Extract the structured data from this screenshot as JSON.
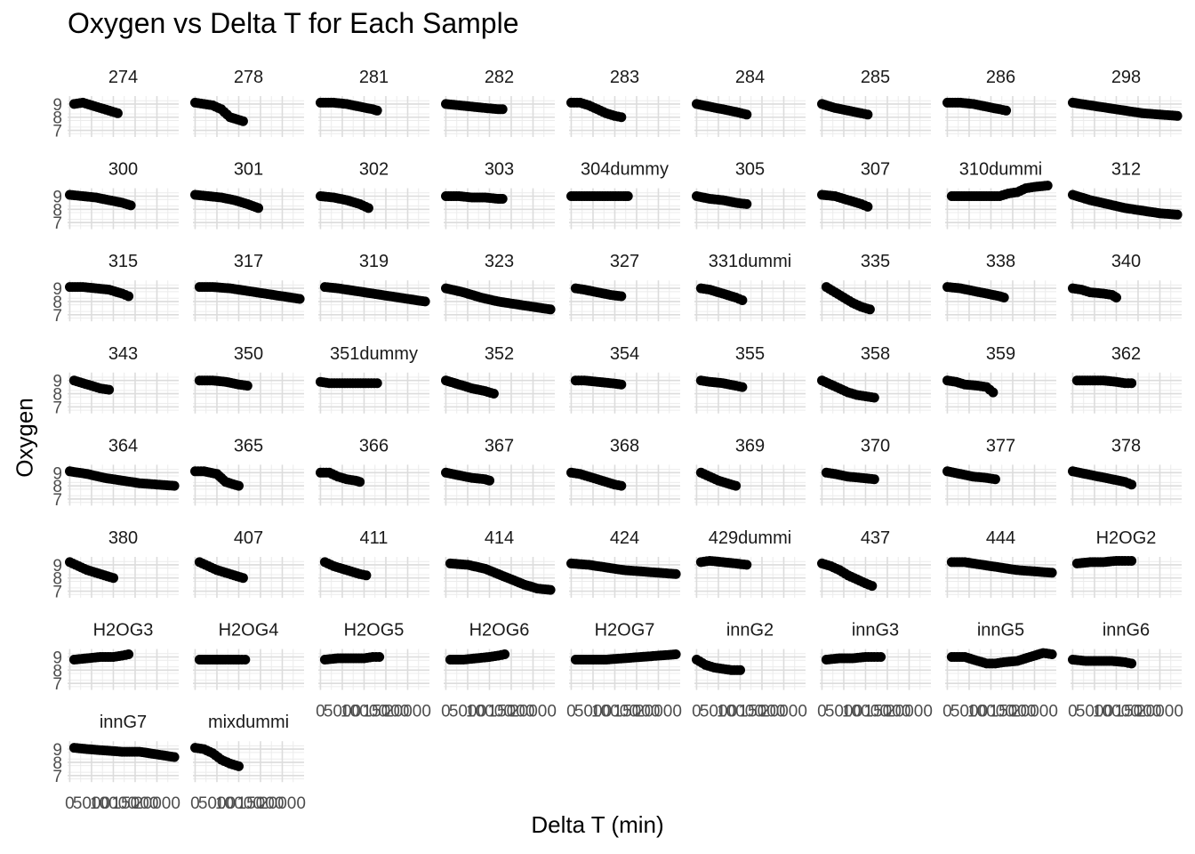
{
  "chart_data": {
    "type": "scatter",
    "title": "Oxygen vs Delta T for Each Sample",
    "xlabel": "Delta T (min)",
    "ylabel": "Oxygen",
    "layout": "facet-wrap",
    "facet_columns": 9,
    "xlim": [
      -500,
      25000
    ],
    "ylim": [
      6.5,
      9.6
    ],
    "y_ticks": [
      7,
      8,
      9
    ],
    "x_ticks": [
      0,
      5000,
      10000,
      15000,
      20000
    ],
    "x_tick_labels": [
      "0",
      "5000",
      "10000",
      "15000",
      "20000"
    ],
    "grid": true,
    "point_color": "#000000",
    "facets": [
      {
        "label": "274",
        "x": [
          1000,
          3000,
          5000,
          7000,
          9000,
          11000
        ],
        "y": [
          9.0,
          9.1,
          8.9,
          8.7,
          8.5,
          8.3
        ]
      },
      {
        "label": "278",
        "x": [
          0,
          2000,
          4000,
          6000,
          8000,
          9000,
          11000
        ],
        "y": [
          9.1,
          9.0,
          8.9,
          8.6,
          8.0,
          7.9,
          7.7
        ]
      },
      {
        "label": "281",
        "x": [
          0,
          3000,
          6000,
          9000,
          12000,
          13000
        ],
        "y": [
          9.1,
          9.1,
          9.0,
          8.8,
          8.6,
          8.5
        ]
      },
      {
        "label": "282",
        "x": [
          0,
          3000,
          6000,
          9000,
          12000,
          13000
        ],
        "y": [
          9.0,
          8.9,
          8.8,
          8.7,
          8.6,
          8.6
        ]
      },
      {
        "label": "283",
        "x": [
          0,
          2000,
          4000,
          6000,
          8000,
          10000,
          11500
        ],
        "y": [
          9.1,
          9.1,
          8.9,
          8.6,
          8.3,
          8.1,
          8.0
        ]
      },
      {
        "label": "284",
        "x": [
          0,
          3000,
          6000,
          9000,
          11500
        ],
        "y": [
          9.0,
          8.8,
          8.6,
          8.4,
          8.2
        ]
      },
      {
        "label": "285",
        "x": [
          0,
          3000,
          6000,
          9000,
          10500
        ],
        "y": [
          9.0,
          8.7,
          8.5,
          8.3,
          8.2
        ]
      },
      {
        "label": "286",
        "x": [
          0,
          3000,
          6000,
          9000,
          12000,
          13500
        ],
        "y": [
          9.1,
          9.1,
          9.0,
          8.8,
          8.6,
          8.5
        ]
      },
      {
        "label": "298",
        "x": [
          0,
          4000,
          8000,
          12000,
          16000,
          20000,
          24000
        ],
        "y": [
          9.1,
          8.9,
          8.7,
          8.5,
          8.3,
          8.2,
          8.1
        ]
      },
      {
        "label": "300",
        "x": [
          0,
          3000,
          6000,
          9000,
          12000,
          14000
        ],
        "y": [
          9.1,
          9.0,
          8.9,
          8.7,
          8.5,
          8.3
        ]
      },
      {
        "label": "301",
        "x": [
          0,
          3000,
          6000,
          9000,
          12000,
          14500
        ],
        "y": [
          9.1,
          9.0,
          8.9,
          8.7,
          8.4,
          8.1
        ]
      },
      {
        "label": "302",
        "x": [
          0,
          3000,
          6000,
          9000,
          11000
        ],
        "y": [
          9.0,
          8.9,
          8.7,
          8.4,
          8.1
        ]
      },
      {
        "label": "303",
        "x": [
          0,
          3000,
          6000,
          9000,
          12000,
          13000
        ],
        "y": [
          9.0,
          9.0,
          8.9,
          8.9,
          8.8,
          8.8
        ]
      },
      {
        "label": "304dummy",
        "x": [
          0,
          3000,
          6000,
          9000,
          12000,
          13000
        ],
        "y": [
          9.0,
          9.0,
          9.0,
          9.0,
          9.0,
          9.0
        ]
      },
      {
        "label": "305",
        "x": [
          0,
          3000,
          6000,
          9000,
          11500
        ],
        "y": [
          9.0,
          8.8,
          8.7,
          8.5,
          8.4
        ]
      },
      {
        "label": "307",
        "x": [
          0,
          3000,
          5000,
          7000,
          9000,
          10500
        ],
        "y": [
          9.1,
          9.0,
          8.8,
          8.6,
          8.4,
          8.2
        ]
      },
      {
        "label": "310dummi",
        "x": [
          1000,
          5000,
          9000,
          12000,
          14000,
          16000,
          18000,
          20000,
          23000
        ],
        "y": [
          9.0,
          9.0,
          9.0,
          9.0,
          9.2,
          9.3,
          9.6,
          9.7,
          9.8
        ]
      },
      {
        "label": "312",
        "x": [
          0,
          4000,
          8000,
          12000,
          16000,
          20000,
          24000
        ],
        "y": [
          9.1,
          8.7,
          8.4,
          8.1,
          7.9,
          7.7,
          7.6
        ]
      },
      {
        "label": "315",
        "x": [
          0,
          3000,
          6000,
          9000,
          12000,
          13500
        ],
        "y": [
          9.1,
          9.1,
          9.0,
          8.9,
          8.6,
          8.4
        ]
      },
      {
        "label": "317",
        "x": [
          1000,
          4000,
          8000,
          12000,
          16000,
          20000,
          24000
        ],
        "y": [
          9.1,
          9.1,
          9.0,
          8.8,
          8.6,
          8.4,
          8.2
        ]
      },
      {
        "label": "319",
        "x": [
          1000,
          4000,
          8000,
          12000,
          16000,
          20000,
          24000
        ],
        "y": [
          9.1,
          9.0,
          8.8,
          8.6,
          8.4,
          8.2,
          8.0
        ]
      },
      {
        "label": "323",
        "x": [
          0,
          4000,
          8000,
          12000,
          16000,
          20000,
          24000
        ],
        "y": [
          9.0,
          8.7,
          8.3,
          8.0,
          7.8,
          7.6,
          7.4
        ]
      },
      {
        "label": "327",
        "x": [
          1000,
          3000,
          6000,
          9000,
          11500
        ],
        "y": [
          9.0,
          8.9,
          8.7,
          8.5,
          8.4
        ]
      },
      {
        "label": "331dummi",
        "x": [
          1000,
          3000,
          6000,
          9000,
          10500
        ],
        "y": [
          9.0,
          8.9,
          8.6,
          8.3,
          8.1
        ]
      },
      {
        "label": "335",
        "x": [
          1000,
          3000,
          5000,
          7000,
          9000,
          11000
        ],
        "y": [
          9.1,
          8.7,
          8.3,
          7.9,
          7.6,
          7.4
        ]
      },
      {
        "label": "338",
        "x": [
          0,
          3000,
          6000,
          9000,
          12000,
          13000
        ],
        "y": [
          9.1,
          9.0,
          8.8,
          8.6,
          8.4,
          8.3
        ]
      },
      {
        "label": "340",
        "x": [
          0,
          2000,
          4000,
          7000,
          9000,
          10000
        ],
        "y": [
          9.0,
          8.9,
          8.7,
          8.6,
          8.5,
          8.3
        ]
      },
      {
        "label": "343",
        "x": [
          1000,
          3000,
          5000,
          7000,
          9000
        ],
        "y": [
          9.0,
          8.8,
          8.6,
          8.4,
          8.3
        ]
      },
      {
        "label": "350",
        "x": [
          1000,
          4000,
          7000,
          10000,
          12000
        ],
        "y": [
          9.0,
          9.0,
          8.9,
          8.7,
          8.6
        ]
      },
      {
        "label": "351dummy",
        "x": [
          0,
          2000,
          5000,
          8000,
          11000,
          13000
        ],
        "y": [
          8.9,
          8.8,
          8.8,
          8.8,
          8.8,
          8.8
        ]
      },
      {
        "label": "352",
        "x": [
          0,
          3000,
          6000,
          9000,
          11000
        ],
        "y": [
          9.0,
          8.7,
          8.4,
          8.2,
          8.0
        ]
      },
      {
        "label": "354",
        "x": [
          1000,
          3000,
          6000,
          9000,
          11500
        ],
        "y": [
          9.0,
          9.0,
          8.9,
          8.8,
          8.7
        ]
      },
      {
        "label": "355",
        "x": [
          1000,
          3000,
          6000,
          9000,
          10500
        ],
        "y": [
          9.0,
          8.9,
          8.8,
          8.6,
          8.5
        ]
      },
      {
        "label": "358",
        "x": [
          0,
          2000,
          4000,
          6000,
          8000,
          10000,
          12000
        ],
        "y": [
          9.0,
          8.7,
          8.4,
          8.1,
          7.9,
          7.8,
          7.7
        ]
      },
      {
        "label": "359",
        "x": [
          0,
          2000,
          4000,
          7000,
          9000,
          10500
        ],
        "y": [
          9.0,
          8.9,
          8.7,
          8.6,
          8.5,
          8.1
        ]
      },
      {
        "label": "362",
        "x": [
          1000,
          4000,
          7000,
          10000,
          12000,
          13500
        ],
        "y": [
          9.0,
          9.0,
          9.0,
          8.9,
          8.8,
          8.8
        ]
      },
      {
        "label": "364",
        "x": [
          0,
          4000,
          8000,
          12000,
          16000,
          20000,
          24000
        ],
        "y": [
          9.1,
          8.9,
          8.6,
          8.4,
          8.2,
          8.1,
          8.0
        ]
      },
      {
        "label": "365",
        "x": [
          0,
          2000,
          5000,
          6000,
          7000,
          8000,
          10000
        ],
        "y": [
          9.1,
          9.1,
          8.9,
          8.6,
          8.3,
          8.2,
          8.0
        ]
      },
      {
        "label": "366",
        "x": [
          0,
          2000,
          4000,
          6000,
          8000,
          9000
        ],
        "y": [
          9.0,
          9.0,
          8.7,
          8.5,
          8.4,
          8.3
        ]
      },
      {
        "label": "367",
        "x": [
          0,
          3000,
          6000,
          9000,
          10000
        ],
        "y": [
          9.0,
          8.8,
          8.6,
          8.5,
          8.4
        ]
      },
      {
        "label": "368",
        "x": [
          0,
          2000,
          4000,
          6000,
          8000,
          10000,
          11500
        ],
        "y": [
          9.0,
          8.9,
          8.7,
          8.5,
          8.3,
          8.1,
          8.0
        ]
      },
      {
        "label": "369",
        "x": [
          1000,
          3000,
          5000,
          7000,
          9000
        ],
        "y": [
          9.0,
          8.7,
          8.4,
          8.2,
          8.0
        ]
      },
      {
        "label": "370",
        "x": [
          1000,
          3000,
          6000,
          9000,
          12000
        ],
        "y": [
          9.0,
          8.9,
          8.7,
          8.6,
          8.5
        ]
      },
      {
        "label": "377",
        "x": [
          0,
          3000,
          6000,
          9000,
          11000
        ],
        "y": [
          9.1,
          8.9,
          8.7,
          8.6,
          8.5
        ]
      },
      {
        "label": "378",
        "x": [
          0,
          3000,
          6000,
          9000,
          12000,
          13500
        ],
        "y": [
          9.1,
          8.9,
          8.7,
          8.5,
          8.3,
          8.1
        ]
      },
      {
        "label": "380",
        "x": [
          0,
          2000,
          4000,
          6000,
          8000,
          10000
        ],
        "y": [
          9.2,
          8.9,
          8.6,
          8.4,
          8.2,
          8.0
        ]
      },
      {
        "label": "407",
        "x": [
          1000,
          3000,
          5000,
          7000,
          9000,
          11000
        ],
        "y": [
          9.2,
          8.9,
          8.6,
          8.4,
          8.2,
          8.0
        ]
      },
      {
        "label": "411",
        "x": [
          1000,
          3000,
          5000,
          7000,
          9000,
          10500
        ],
        "y": [
          9.2,
          8.9,
          8.7,
          8.5,
          8.3,
          8.2
        ]
      },
      {
        "label": "414",
        "x": [
          1000,
          5000,
          9000,
          12000,
          15000,
          18000,
          21000,
          24000
        ],
        "y": [
          9.1,
          9.0,
          8.7,
          8.3,
          7.9,
          7.5,
          7.2,
          7.1
        ]
      },
      {
        "label": "424",
        "x": [
          0,
          4000,
          8000,
          12000,
          16000,
          20000,
          24000
        ],
        "y": [
          9.1,
          9.0,
          8.8,
          8.6,
          8.5,
          8.4,
          8.3
        ]
      },
      {
        "label": "429dummi",
        "x": [
          1000,
          3000,
          6000,
          9000,
          11500
        ],
        "y": [
          9.2,
          9.3,
          9.2,
          9.1,
          9.0
        ]
      },
      {
        "label": "437",
        "x": [
          0,
          2000,
          4000,
          6000,
          8000,
          10000,
          11500
        ],
        "y": [
          9.1,
          8.9,
          8.6,
          8.2,
          7.9,
          7.6,
          7.4
        ]
      },
      {
        "label": "444",
        "x": [
          1000,
          4000,
          8000,
          12000,
          16000,
          20000,
          24000
        ],
        "y": [
          9.2,
          9.2,
          9.0,
          8.8,
          8.6,
          8.5,
          8.4
        ]
      },
      {
        "label": "H2OG2",
        "x": [
          1000,
          4000,
          7000,
          10000,
          12000,
          13500
        ],
        "y": [
          9.1,
          9.2,
          9.2,
          9.3,
          9.3,
          9.3
        ]
      },
      {
        "label": "H2OG3",
        "x": [
          1000,
          4000,
          7000,
          10000,
          12000,
          13500
        ],
        "y": [
          8.8,
          8.9,
          9.0,
          9.0,
          9.1,
          9.2
        ]
      },
      {
        "label": "H2OG4",
        "x": [
          1000,
          4000,
          7000,
          10000,
          11500
        ],
        "y": [
          8.8,
          8.8,
          8.8,
          8.8,
          8.8
        ]
      },
      {
        "label": "H2OG5",
        "x": [
          1000,
          4000,
          7000,
          10000,
          12000,
          13500
        ],
        "y": [
          8.8,
          8.9,
          8.9,
          8.9,
          9.0,
          9.0
        ]
      },
      {
        "label": "H2OG6",
        "x": [
          1000,
          4000,
          7000,
          10000,
          12000,
          13500
        ],
        "y": [
          8.8,
          8.8,
          8.9,
          9.0,
          9.1,
          9.2
        ]
      },
      {
        "label": "H2OG7",
        "x": [
          1000,
          4000,
          8000,
          12000,
          16000,
          20000,
          24000
        ],
        "y": [
          8.8,
          8.8,
          8.8,
          8.9,
          9.0,
          9.1,
          9.2
        ]
      },
      {
        "label": "innG2",
        "x": [
          0,
          2000,
          4000,
          6000,
          8000,
          10000
        ],
        "y": [
          8.8,
          8.4,
          8.2,
          8.1,
          8.0,
          8.0
        ]
      },
      {
        "label": "innG3",
        "x": [
          1000,
          4000,
          7000,
          10000,
          12000,
          13500
        ],
        "y": [
          8.8,
          8.9,
          8.9,
          9.0,
          9.0,
          9.0
        ]
      },
      {
        "label": "innG5",
        "x": [
          1000,
          4000,
          7000,
          9000,
          11000,
          13000,
          16000,
          19000,
          22000,
          24000
        ],
        "y": [
          9.0,
          9.0,
          8.7,
          8.5,
          8.5,
          8.6,
          8.7,
          9.0,
          9.3,
          9.2
        ]
      },
      {
        "label": "innG6",
        "x": [
          0,
          3000,
          6000,
          9000,
          12000,
          13500
        ],
        "y": [
          8.8,
          8.7,
          8.7,
          8.7,
          8.6,
          8.5
        ]
      },
      {
        "label": "innG7",
        "x": [
          1000,
          4000,
          8000,
          12000,
          16000,
          20000,
          24000
        ],
        "y": [
          9.1,
          9.0,
          8.9,
          8.8,
          8.8,
          8.6,
          8.4
        ]
      },
      {
        "label": "mixdummi",
        "x": [
          0,
          2000,
          4000,
          6000,
          8000,
          10000
        ],
        "y": [
          9.1,
          9.0,
          8.7,
          8.2,
          7.9,
          7.7
        ]
      }
    ]
  }
}
